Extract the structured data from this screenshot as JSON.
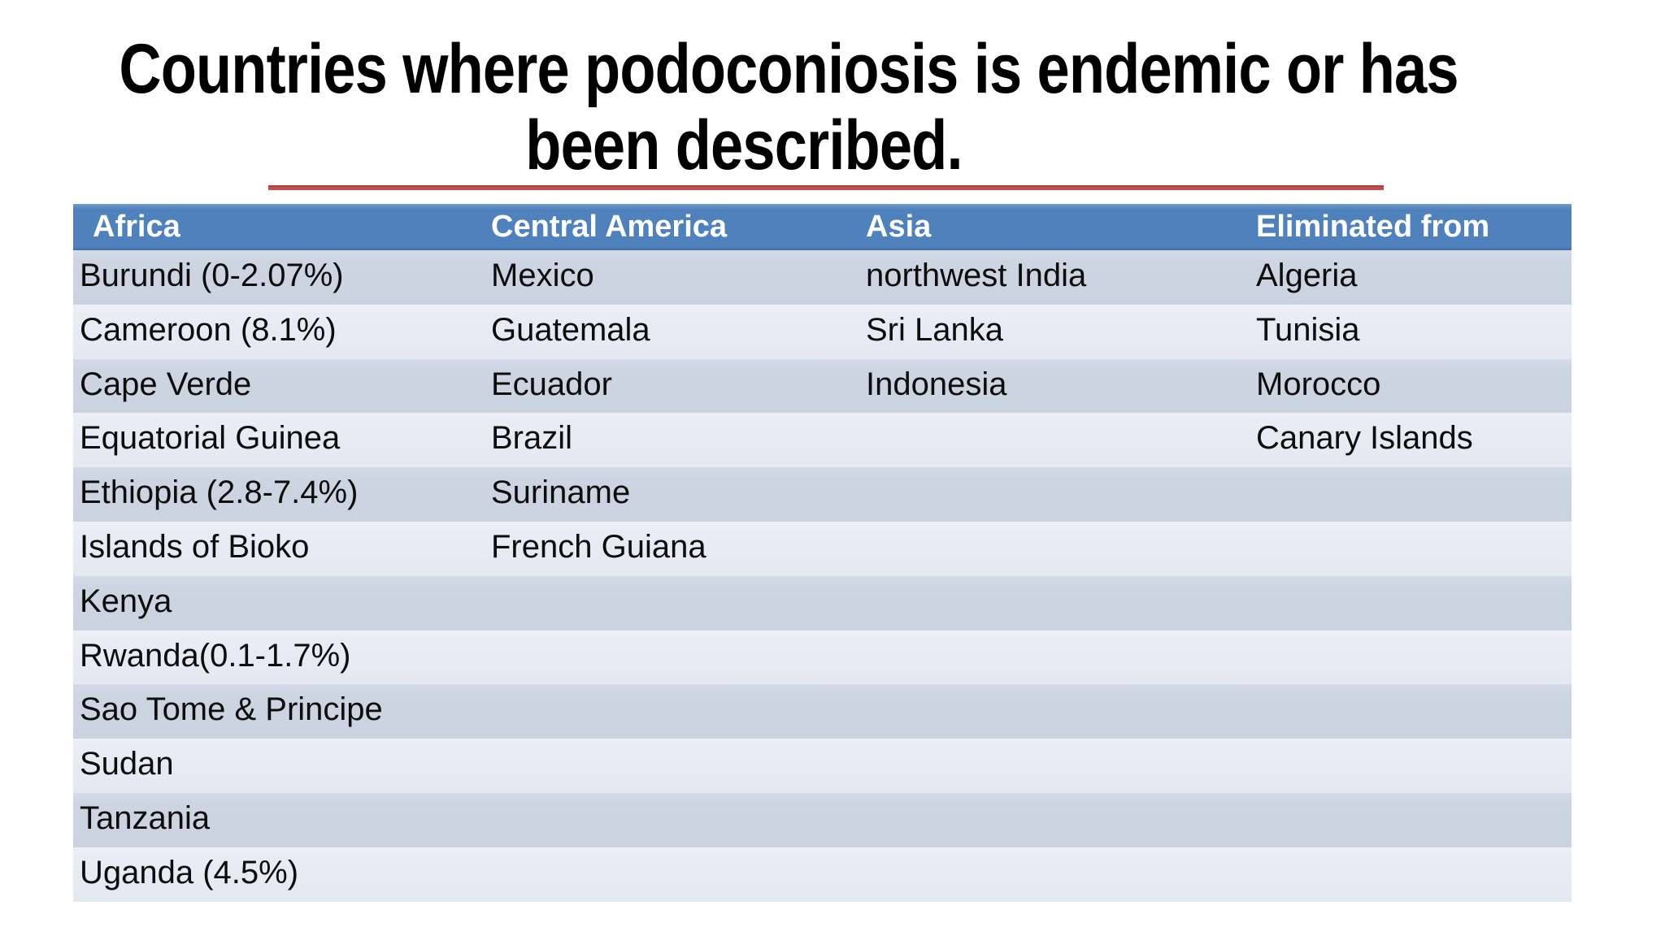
{
  "slide": {
    "title_line1": "Countries where podoconiosis is endemic or has",
    "title_line2": "been described.",
    "colors": {
      "header_bg": "#4F81BD",
      "header_text": "#FFFFFF",
      "band_dark": "#CDD5E3",
      "band_light": "#E9ECF4",
      "accent_line": "#C0504D",
      "body_text": "#000000",
      "background": "#FFFFFF"
    }
  },
  "table": {
    "headers": [
      "Africa",
      "Central America",
      "Asia",
      "Eliminated from"
    ],
    "rows": [
      {
        "cells": [
          "Burundi (0-2.07%)",
          "Mexico",
          "northwest India",
          "Algeria"
        ]
      },
      {
        "cells": [
          "Cameroon (8.1%)",
          "Guatemala",
          "Sri Lanka",
          "Tunisia"
        ]
      },
      {
        "cells": [
          "Cape Verde",
          "Ecuador",
          "Indonesia",
          "Morocco"
        ]
      },
      {
        "cells": [
          "Equatorial Guinea",
          "Brazil",
          "",
          "Canary Islands"
        ]
      },
      {
        "cells": [
          "Ethiopia (2.8-7.4%)",
          "Suriname",
          "",
          ""
        ]
      },
      {
        "cells": [
          "Islands of Bioko",
          "French Guiana",
          "",
          ""
        ]
      },
      {
        "cells": [
          "Kenya",
          "",
          "",
          ""
        ]
      },
      {
        "cells": [
          "Rwanda(0.1-1.7%)",
          "",
          "",
          ""
        ]
      },
      {
        "cells": [
          "Sao Tome & Principe",
          "",
          "",
          ""
        ]
      },
      {
        "cells": [
          "Sudan",
          "",
          "",
          ""
        ]
      },
      {
        "cells": [
          "Tanzania",
          "",
          "",
          ""
        ]
      },
      {
        "cells": [
          "Uganda (4.5%)",
          "",
          "",
          ""
        ]
      }
    ]
  }
}
